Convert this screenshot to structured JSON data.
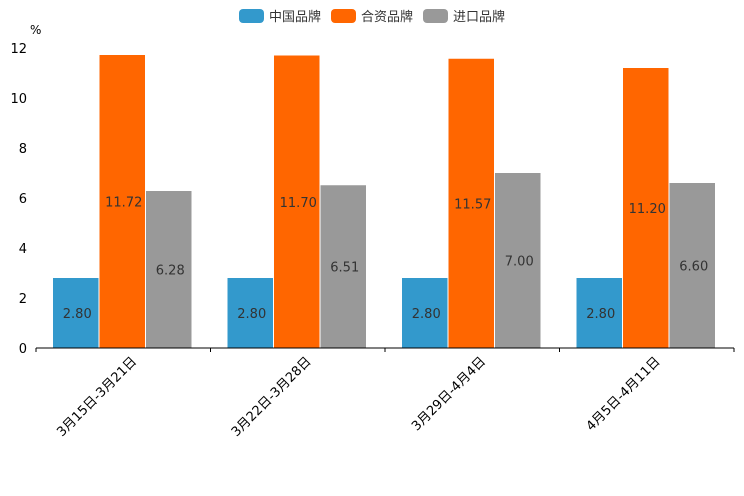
{
  "chart_data": {
    "type": "bar",
    "unit": "%",
    "categories": [
      "3月15日-3月21日",
      "3月22日-3月28日",
      "3月29日-4月4日",
      "4月5日-4月11日"
    ],
    "series": [
      {
        "name": "中国品牌",
        "color": "#3399cc",
        "values": [
          2.8,
          2.8,
          2.8,
          2.8
        ],
        "labels": [
          "2.80",
          "2.80",
          "2.80",
          "2.80"
        ]
      },
      {
        "name": "合资品牌",
        "color": "#ff6600",
        "values": [
          11.72,
          11.7,
          11.57,
          11.2
        ],
        "labels": [
          "11.72",
          "11.70",
          "11.57",
          "11.20"
        ]
      },
      {
        "name": "进口品牌",
        "color": "#999999",
        "values": [
          6.28,
          6.51,
          7.0,
          6.6
        ],
        "labels": [
          "6.28",
          "6.51",
          "7.00",
          "6.60"
        ]
      }
    ],
    "ylim": [
      0,
      12
    ],
    "yticks": [
      "0",
      "2",
      "4",
      "6",
      "8",
      "10",
      "12"
    ],
    "legend_position": "top-center",
    "grid": false
  }
}
